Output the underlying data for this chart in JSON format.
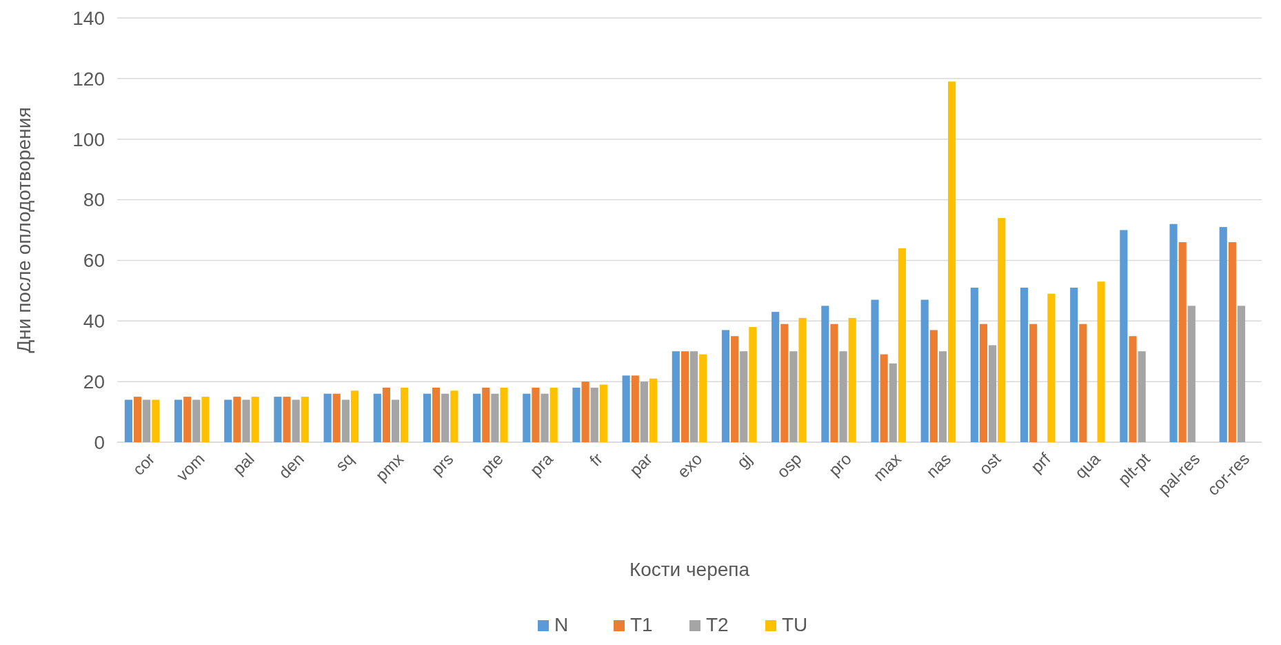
{
  "chart_data": {
    "type": "bar",
    "xlabel": "Кости черепа",
    "ylabel": "Дни после оплодотворения",
    "categories": [
      "cor",
      "vom",
      "pal",
      "den",
      "sq",
      "pmx",
      "prs",
      "pte",
      "pra",
      "fr",
      "par",
      "exo",
      "gj",
      "osp",
      "pro",
      "max",
      "nas",
      "ost",
      "prf",
      "qua",
      "plt-pt",
      "pal-res",
      "cor-res"
    ],
    "series": [
      {
        "name": "N",
        "color": "#5b9bd5",
        "values": [
          14,
          14,
          14,
          15,
          16,
          16,
          16,
          16,
          16,
          18,
          22,
          30,
          37,
          43,
          45,
          47,
          47,
          51,
          51,
          51,
          70,
          72,
          71
        ]
      },
      {
        "name": "T1",
        "color": "#ed7d31",
        "values": [
          15,
          15,
          15,
          15,
          16,
          18,
          18,
          18,
          18,
          20,
          22,
          30,
          35,
          39,
          39,
          29,
          37,
          39,
          39,
          39,
          35,
          66,
          66
        ]
      },
      {
        "name": "T2",
        "color": "#a5a5a5",
        "values": [
          14,
          14,
          14,
          14,
          14,
          14,
          16,
          16,
          16,
          18,
          20,
          30,
          30,
          30,
          30,
          26,
          30,
          32,
          null,
          null,
          30,
          45,
          45
        ]
      },
      {
        "name": "TU",
        "color": "#ffc000",
        "values": [
          14,
          15,
          15,
          15,
          17,
          18,
          17,
          18,
          18,
          19,
          21,
          29,
          38,
          41,
          41,
          64,
          119,
          74,
          49,
          53,
          null,
          null,
          null
        ]
      }
    ],
    "ylim": [
      0,
      140
    ],
    "yticks": [
      0,
      20,
      40,
      60,
      80,
      100,
      120,
      140
    ],
    "grid": "y",
    "legend": "bottom"
  }
}
